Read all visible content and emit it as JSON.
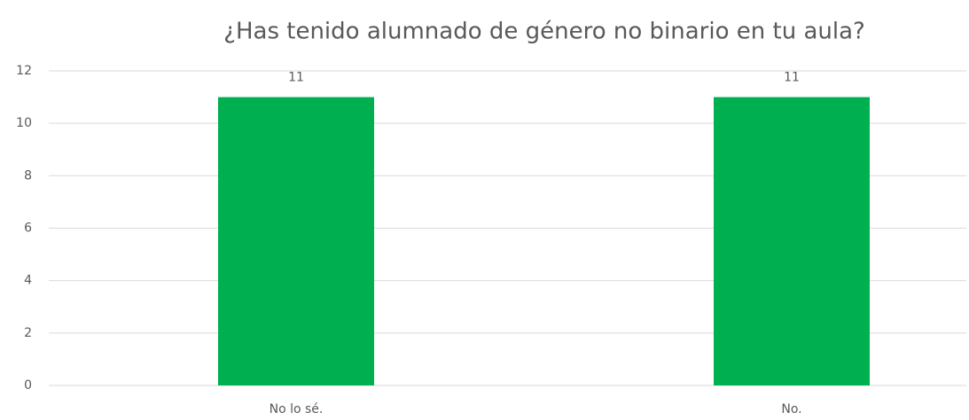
{
  "chart_data": {
    "type": "bar",
    "title": "¿Has tenido alumnado de género no binario en tu aula?",
    "categories": [
      "No lo sé.",
      "No."
    ],
    "values": [
      11,
      11
    ],
    "color": "#00b050",
    "ylim": [
      0,
      12
    ],
    "yticks": [
      0,
      2,
      4,
      6,
      8,
      10,
      12
    ],
    "grid": true,
    "data_labels": true
  }
}
